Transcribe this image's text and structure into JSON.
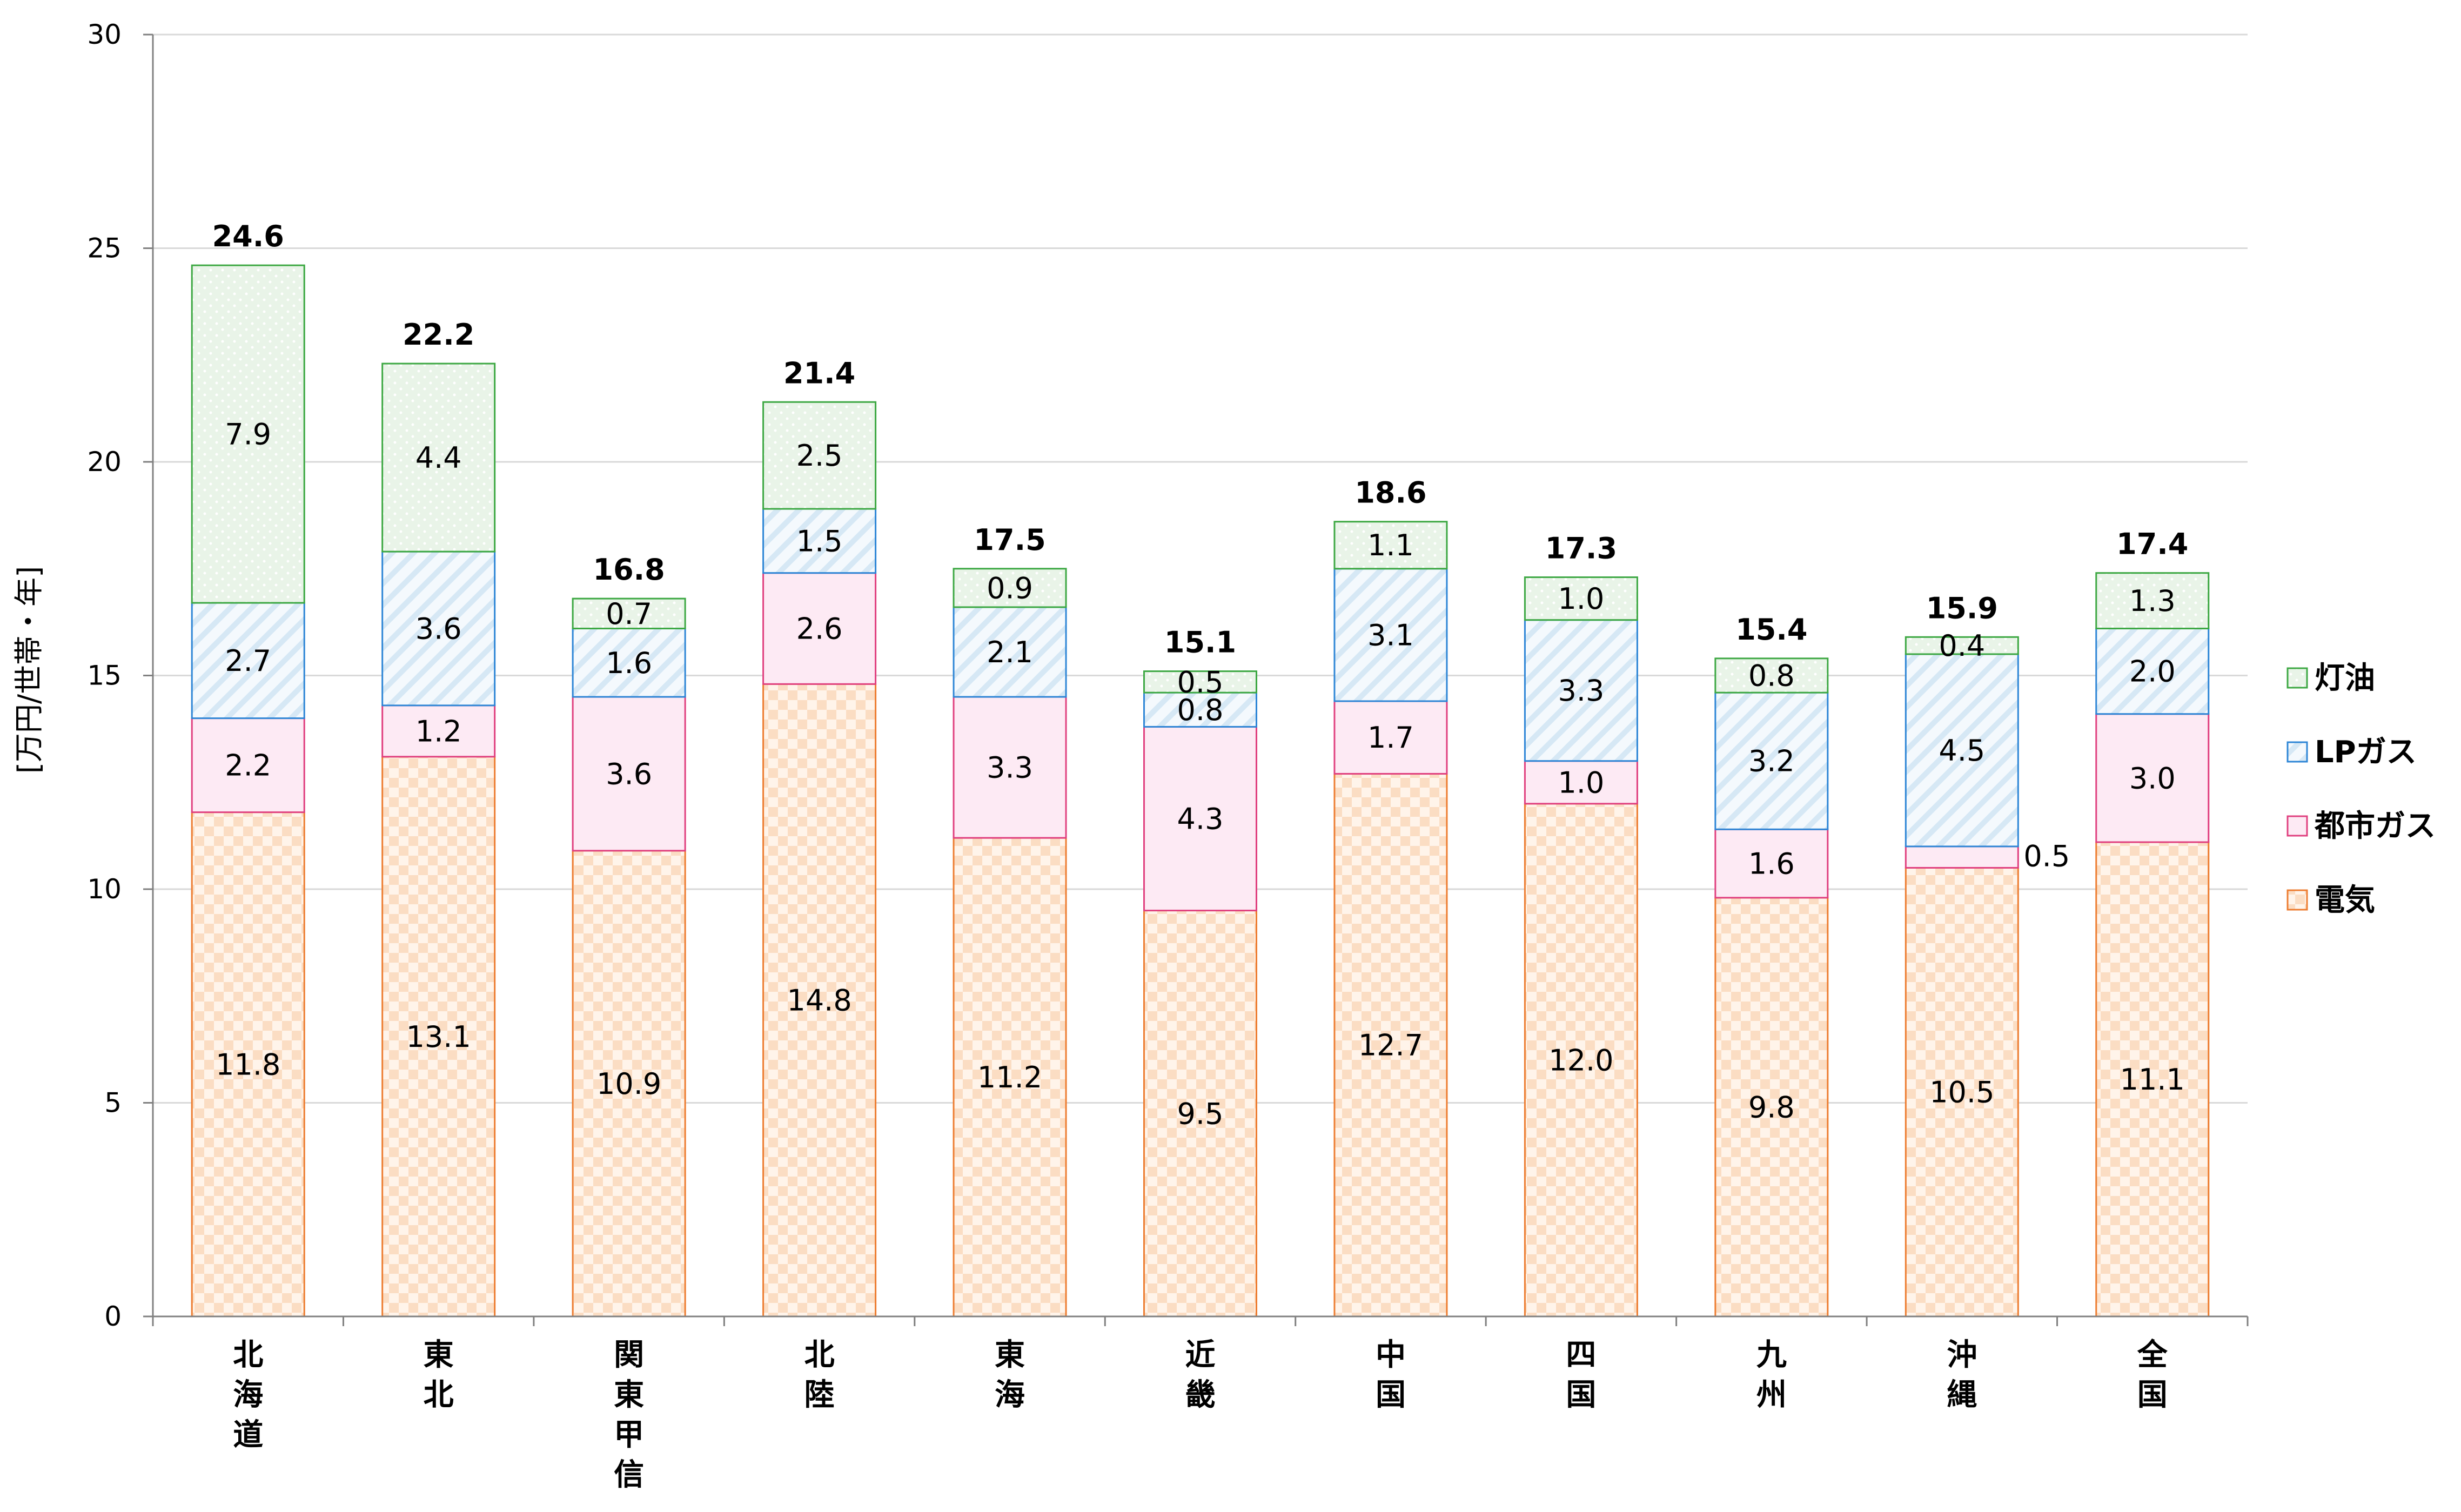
{
  "chart_data": {
    "type": "bar",
    "stacked": true,
    "title": "",
    "xlabel": "",
    "ylabel": "[万円/世帯・年]",
    "ylim": [
      0,
      30
    ],
    "yticks": [
      0,
      5,
      10,
      15,
      20,
      25,
      30
    ],
    "grid": true,
    "legend_position": "right",
    "categories": [
      "北海道",
      "東北",
      "関東甲信",
      "北陸",
      "東海",
      "近畿",
      "中国",
      "四国",
      "九州",
      "沖縄",
      "全国"
    ],
    "series": [
      {
        "name": "電気",
        "color": "#ED7D31",
        "pattern": "checker",
        "values": [
          11.8,
          13.1,
          10.9,
          14.8,
          11.2,
          9.5,
          12.7,
          12.0,
          9.8,
          10.5,
          11.1
        ]
      },
      {
        "name": "都市ガス",
        "color": "#E0407F",
        "pattern": "solid",
        "values": [
          2.2,
          1.2,
          3.6,
          2.6,
          3.3,
          4.3,
          1.7,
          1.0,
          1.6,
          0.5,
          3.0
        ]
      },
      {
        "name": "LPガス",
        "color": "#2E86D6",
        "pattern": "diagonal",
        "values": [
          2.7,
          3.6,
          1.6,
          1.5,
          2.1,
          0.8,
          3.1,
          3.3,
          3.2,
          4.5,
          2.0
        ]
      },
      {
        "name": "灯油",
        "color": "#3DA843",
        "pattern": "dots",
        "values": [
          7.9,
          4.4,
          0.7,
          2.5,
          0.9,
          0.5,
          1.1,
          1.0,
          0.8,
          0.4,
          1.3
        ]
      }
    ],
    "totals": [
      24.6,
      22.2,
      16.8,
      21.4,
      17.5,
      15.1,
      18.6,
      17.3,
      15.4,
      15.9,
      17.4
    ],
    "legend_order": [
      "灯油",
      "LPガス",
      "都市ガス",
      "電気"
    ]
  }
}
